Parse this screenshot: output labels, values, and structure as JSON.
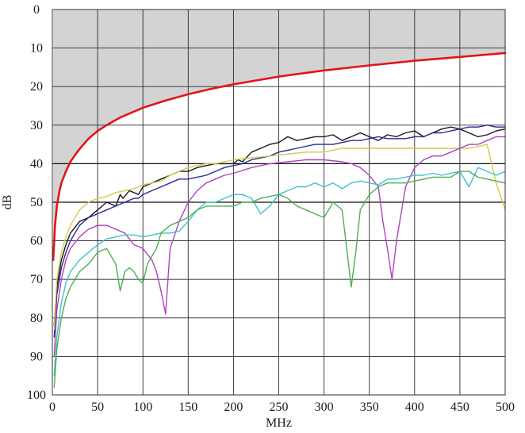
{
  "chart_data": {
    "type": "line",
    "xlabel": "MHz",
    "ylabel": "dB",
    "xlim": [
      0,
      500
    ],
    "ylim": [
      0,
      100
    ],
    "y_inverted": true,
    "x_ticks": [
      0,
      50,
      100,
      150,
      200,
      250,
      300,
      350,
      400,
      450,
      500
    ],
    "y_ticks": [
      0,
      10,
      20,
      30,
      40,
      50,
      60,
      70,
      80,
      90,
      100
    ],
    "x_tick_labels": [
      "0",
      "50",
      "100",
      "150",
      "200",
      "250",
      "300",
      "350",
      "400",
      "450",
      "500"
    ],
    "y_tick_labels": [
      "0",
      "10",
      "20",
      "30",
      "40",
      "50",
      "60",
      "70",
      "80",
      "90",
      "100"
    ],
    "grid": true,
    "legend": "none",
    "limit_fill_color": "#d3d3d3",
    "series": [
      {
        "color": "#e3141b",
        "role": "limit",
        "x": [
          1,
          3,
          5,
          8,
          10,
          15,
          20,
          25,
          30,
          40,
          50,
          60,
          75,
          100,
          125,
          150,
          175,
          200,
          250,
          300,
          350,
          400,
          450,
          500
        ],
        "y": [
          65,
          56,
          51,
          47,
          45,
          42,
          39.5,
          37.8,
          36.2,
          33.5,
          31.5,
          30,
          28,
          25.5,
          23.6,
          22,
          20.6,
          19.4,
          17.4,
          15.8,
          14.5,
          13.3,
          12.3,
          11.3
        ]
      },
      {
        "color": "#1a1a1a",
        "x": [
          2,
          5,
          10,
          15,
          20,
          30,
          40,
          50,
          60,
          70,
          75,
          78,
          85,
          95,
          100,
          105,
          110,
          120,
          130,
          140,
          150,
          160,
          170,
          180,
          190,
          200,
          205,
          210,
          220,
          230,
          240,
          250,
          260,
          270,
          280,
          290,
          300,
          310,
          320,
          330,
          340,
          350,
          360,
          370,
          380,
          390,
          400,
          410,
          420,
          430,
          440,
          450,
          460,
          470,
          480,
          490,
          500
        ],
        "y": [
          82,
          72,
          65,
          61,
          58,
          55,
          54,
          52,
          50,
          51,
          48,
          49,
          47,
          48,
          46,
          45.5,
          45,
          44,
          43,
          42,
          42,
          41,
          40.5,
          40,
          40,
          40,
          39,
          39.5,
          37,
          36,
          35,
          34.5,
          33,
          34,
          33.5,
          33,
          33,
          32.5,
          34,
          33,
          32,
          33,
          34,
          32.5,
          33,
          32,
          31.5,
          33,
          32,
          31,
          30.5,
          31,
          32,
          33,
          32.5,
          31.5,
          31
        ]
      },
      {
        "color": "#2a2a9a",
        "x": [
          2,
          5,
          10,
          15,
          20,
          30,
          40,
          50,
          60,
          70,
          80,
          90,
          95,
          100,
          110,
          120,
          130,
          140,
          150,
          160,
          170,
          180,
          190,
          200,
          210,
          220,
          230,
          240,
          250,
          260,
          270,
          280,
          290,
          300,
          310,
          320,
          330,
          340,
          350,
          360,
          370,
          380,
          390,
          400,
          410,
          420,
          430,
          440,
          450,
          460,
          470,
          480,
          490,
          500
        ],
        "y": [
          85,
          74,
          67,
          63,
          60,
          56,
          54,
          53,
          52,
          51,
          50,
          49,
          49,
          48,
          47,
          46,
          45,
          44,
          44,
          43.5,
          43,
          42,
          41,
          40.5,
          40,
          39,
          38.5,
          38,
          37,
          36.5,
          36,
          35.5,
          35,
          35,
          35,
          34.5,
          34,
          34,
          33.5,
          33,
          33.5,
          33.5,
          33.5,
          33,
          33,
          32,
          32,
          31.5,
          31,
          30.5,
          30.5,
          30,
          30.5,
          30.5
        ]
      },
      {
        "color": "#d8c84a",
        "x": [
          2,
          5,
          10,
          15,
          20,
          30,
          40,
          50,
          60,
          70,
          80,
          90,
          100,
          110,
          120,
          130,
          140,
          150,
          160,
          170,
          180,
          190,
          200,
          220,
          240,
          260,
          280,
          300,
          320,
          340,
          360,
          380,
          400,
          420,
          440,
          460,
          480,
          490,
          500
        ],
        "y": [
          83,
          70,
          63,
          59,
          56,
          52,
          50,
          49,
          48.5,
          47.5,
          47,
          46.5,
          45.5,
          45,
          44.5,
          43,
          42,
          41,
          40.5,
          40,
          40,
          39.5,
          39,
          38.5,
          38,
          37.5,
          37,
          37,
          36,
          36,
          36,
          36,
          36,
          36,
          36,
          36,
          35,
          45,
          52
        ]
      },
      {
        "color": "#b040c0",
        "x": [
          2,
          5,
          10,
          15,
          20,
          30,
          40,
          50,
          60,
          70,
          80,
          90,
          100,
          110,
          115,
          120,
          125,
          130,
          140,
          150,
          160,
          170,
          180,
          190,
          200,
          220,
          240,
          260,
          280,
          300,
          320,
          330,
          340,
          350,
          360,
          365,
          370,
          375,
          380,
          390,
          400,
          410,
          420,
          430,
          440,
          450,
          460,
          470,
          480,
          490,
          500
        ],
        "y": [
          90,
          78,
          70,
          65,
          62,
          59,
          57,
          56,
          56,
          57,
          58,
          61,
          62,
          65,
          68,
          73,
          79,
          62,
          55,
          50,
          47,
          45,
          44,
          43,
          42.5,
          41,
          40,
          39.5,
          39,
          39,
          39.5,
          40,
          41,
          43,
          46,
          55,
          62,
          70,
          60,
          46,
          41,
          39,
          38,
          38,
          37,
          36,
          35,
          35,
          34,
          33,
          33
        ]
      },
      {
        "color": "#40c0d0",
        "x": [
          2,
          5,
          10,
          15,
          20,
          30,
          40,
          50,
          60,
          70,
          80,
          90,
          100,
          110,
          120,
          130,
          140,
          150,
          160,
          170,
          180,
          190,
          200,
          210,
          220,
          230,
          240,
          250,
          260,
          270,
          280,
          290,
          300,
          310,
          320,
          330,
          340,
          350,
          360,
          370,
          380,
          390,
          400,
          410,
          420,
          430,
          440,
          450,
          460,
          470,
          480,
          490,
          500
        ],
        "y": [
          95,
          85,
          76,
          71,
          68,
          65,
          63,
          61,
          59.5,
          59,
          58.5,
          58.5,
          59,
          58.5,
          58,
          58,
          57.5,
          55,
          52,
          50,
          50,
          49,
          48,
          48,
          49,
          53,
          51,
          48,
          47,
          46,
          46,
          45,
          46,
          45,
          46.5,
          45,
          44.5,
          45,
          45.5,
          44,
          44,
          43.5,
          43,
          43,
          42.5,
          43,
          42.5,
          42,
          46,
          41,
          42,
          43,
          42
        ]
      },
      {
        "color": "#4caf50",
        "x": [
          2,
          5,
          10,
          15,
          20,
          30,
          40,
          50,
          60,
          70,
          75,
          80,
          85,
          90,
          95,
          100,
          105,
          110,
          115,
          120,
          130,
          140,
          150,
          160,
          170,
          180,
          190,
          200,
          210,
          220,
          230,
          240,
          250,
          260,
          270,
          280,
          290,
          300,
          310,
          320,
          325,
          330,
          335,
          340,
          350,
          360,
          370,
          380,
          390,
          400,
          410,
          420,
          430,
          440,
          450,
          460,
          470,
          480,
          490,
          500
        ],
        "y": [
          98,
          88,
          80,
          75,
          72,
          68,
          66,
          63,
          62,
          66,
          73,
          68,
          67,
          68,
          70,
          71,
          66,
          64,
          62,
          58,
          56,
          55,
          54,
          52,
          51,
          51,
          51,
          51,
          50,
          50,
          49,
          48.5,
          48,
          49,
          51,
          52,
          53,
          54,
          50,
          52,
          62,
          72,
          63,
          52,
          48,
          46,
          45,
          45,
          45,
          44.5,
          44,
          43.5,
          43.5,
          43.5,
          42,
          42,
          43.5,
          44,
          44.5,
          45
        ]
      }
    ]
  }
}
